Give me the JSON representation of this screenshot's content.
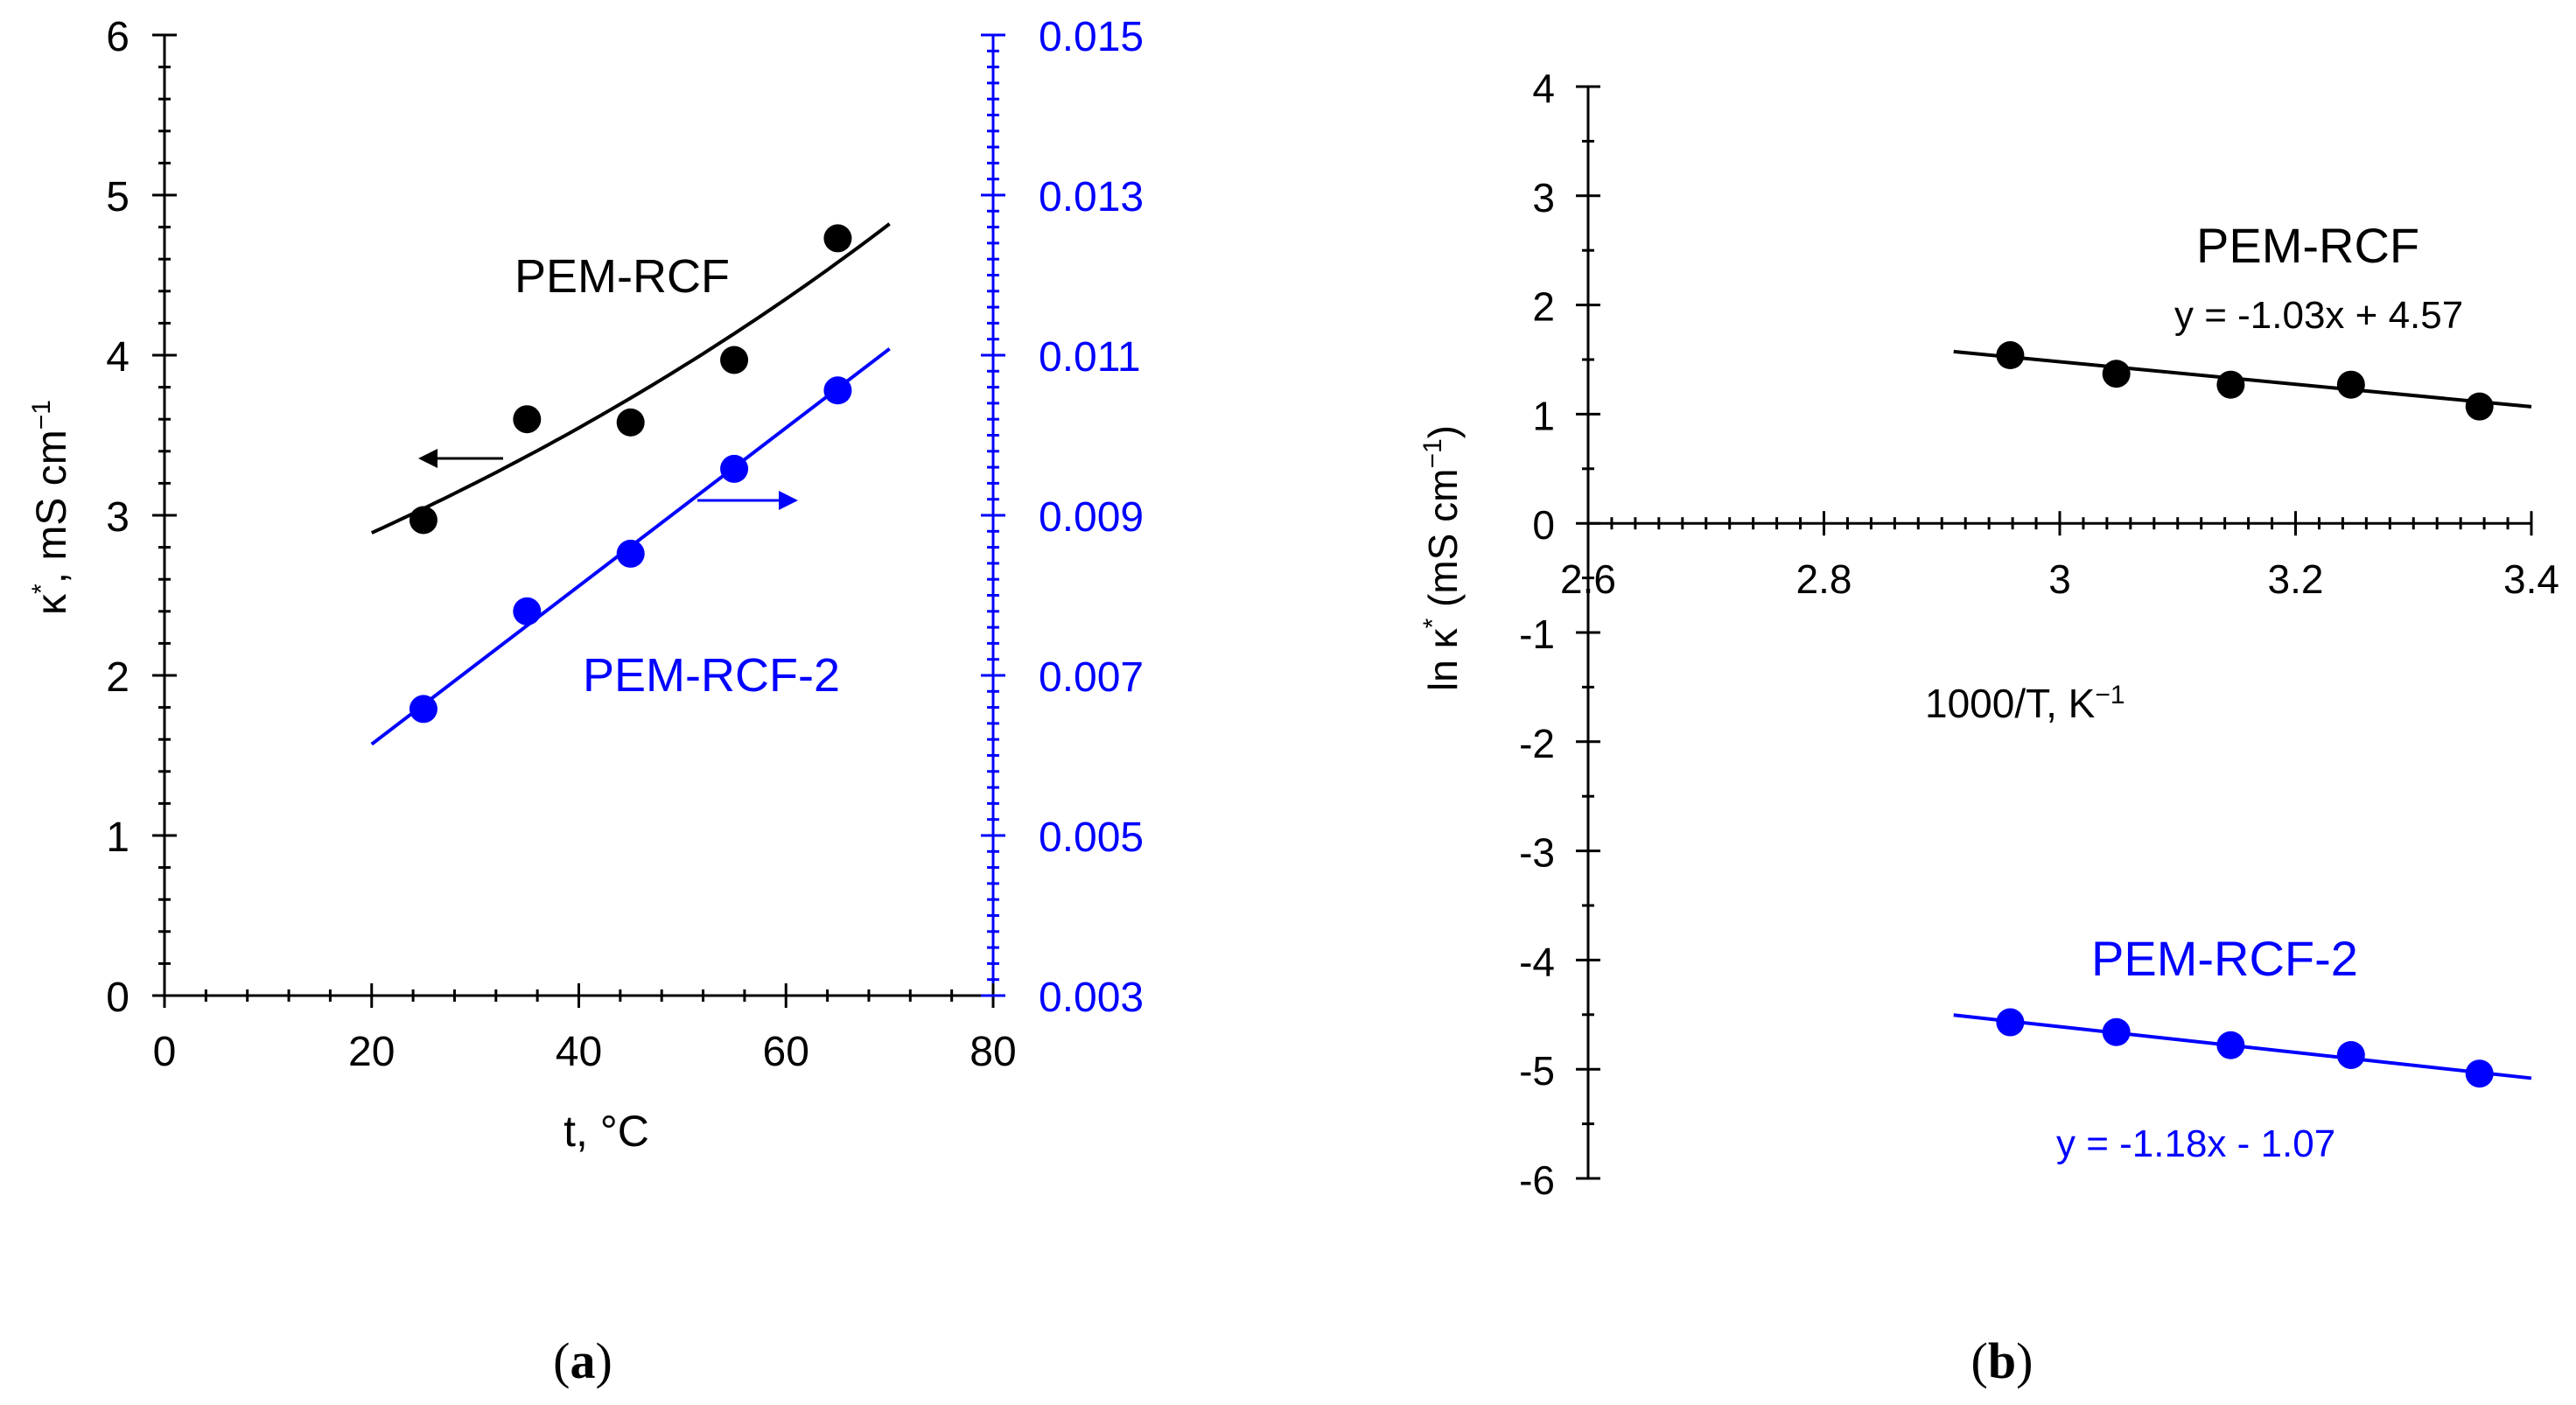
{
  "colors": {
    "black": "#000000",
    "blue": "#0000ff"
  },
  "chart_data": [
    {
      "panel": "a",
      "type": "scatter",
      "panel_label": "a",
      "xlabel": "t, °C",
      "ylabel_left": "κ*, mS cm−1",
      "xlim": [
        0,
        80
      ],
      "ylim_left": [
        0,
        6
      ],
      "ylim_right": [
        0.003,
        0.015
      ],
      "x_ticks": [
        "0",
        "20",
        "40",
        "60",
        "80"
      ],
      "y_left_ticks": [
        "0",
        "1",
        "2",
        "3",
        "4",
        "5",
        "6"
      ],
      "y_right_ticks": [
        "0.003",
        "0.005",
        "0.007",
        "0.009",
        "0.011",
        "0.013",
        "0.015"
      ],
      "grid": false,
      "series": [
        {
          "name": "PEM-RCF",
          "axis": "left",
          "color": "#000000",
          "x": [
            25,
            35,
            45,
            55,
            65
          ],
          "y": [
            2.97,
            3.6,
            3.58,
            3.97,
            4.73
          ],
          "fit": {
            "kind": "exponential",
            "x": [
              20,
              70
            ],
            "y_at_20": 2.89,
            "y_at_70": 4.82
          }
        },
        {
          "name": "PEM-RCF-2",
          "axis": "right",
          "color": "#0000ff",
          "x": [
            25,
            35,
            45,
            55,
            65
          ],
          "y": [
            0.00658,
            0.0078,
            0.00852,
            0.00958,
            0.01056
          ],
          "fit": {
            "kind": "linear",
            "x": [
              20,
              70
            ],
            "y": [
              0.00614,
              0.01108
            ]
          }
        }
      ]
    },
    {
      "panel": "b",
      "type": "scatter",
      "panel_label": "b",
      "xlabel": "1000/T, K−1",
      "ylabel": "ln κ* (mS cm−1)",
      "xlim": [
        2.6,
        3.4
      ],
      "ylim": [
        -6,
        4
      ],
      "x_ticks": [
        "2.6",
        "2.8",
        "3",
        "3.2",
        "3.4"
      ],
      "y_ticks": [
        "-6",
        "-5",
        "-4",
        "-3",
        "-2",
        "-1",
        "0",
        "1",
        "2",
        "3",
        "4"
      ],
      "grid": false,
      "series": [
        {
          "name": "PEM-RCF",
          "color": "#000000",
          "x": [
            2.958,
            3.048,
            3.145,
            3.247,
            3.356
          ],
          "y": [
            1.54,
            1.37,
            1.27,
            1.27,
            1.07
          ],
          "fit": {
            "x": [
              2.91,
              3.4
            ],
            "slope": -1.03,
            "intercept": 4.57
          },
          "equation": "y = -1.03x + 4.57"
        },
        {
          "name": "PEM-RCF-2",
          "color": "#0000ff",
          "x": [
            2.958,
            3.048,
            3.145,
            3.247,
            3.356
          ],
          "y": [
            -4.57,
            -4.66,
            -4.78,
            -4.87,
            -5.04
          ],
          "fit": {
            "x": [
              2.91,
              3.4
            ],
            "slope": -1.18,
            "intercept": -1.07
          },
          "equation": "y = -1.18x - 1.07"
        }
      ]
    }
  ]
}
